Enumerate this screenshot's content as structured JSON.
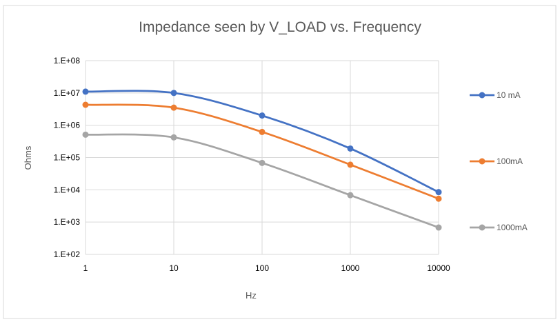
{
  "chart_data": {
    "type": "line",
    "title": "Impedance seen by V_LOAD vs. Frequency",
    "xlabel": "Hz",
    "ylabel": "Ohms",
    "x_scale": "log",
    "y_scale": "log",
    "x": [
      1,
      10,
      100,
      1000,
      10000
    ],
    "x_tick_labels": [
      "1",
      "10",
      "100",
      "1000",
      "10000"
    ],
    "y_tick_labels": [
      "1.E+02",
      "1.E+03",
      "1.E+04",
      "1.E+05",
      "1.E+06",
      "1.E+07",
      "1.E+08"
    ],
    "ylim": [
      100,
      100000000
    ],
    "xlim": [
      1,
      10000
    ],
    "grid": true,
    "smooth_lines": true,
    "legend_position": "right",
    "series": [
      {
        "name": "10 mA",
        "color": "#4472C4",
        "values": [
          11000000,
          10000000,
          2000000,
          190000,
          8500
        ]
      },
      {
        "name": "100mA",
        "color": "#ED7D31",
        "values": [
          4300000,
          3500000,
          620000,
          60000,
          5300
        ]
      },
      {
        "name": "1000mA",
        "color": "#A5A5A5",
        "values": [
          510000,
          420000,
          68000,
          6800,
          680
        ]
      }
    ]
  }
}
